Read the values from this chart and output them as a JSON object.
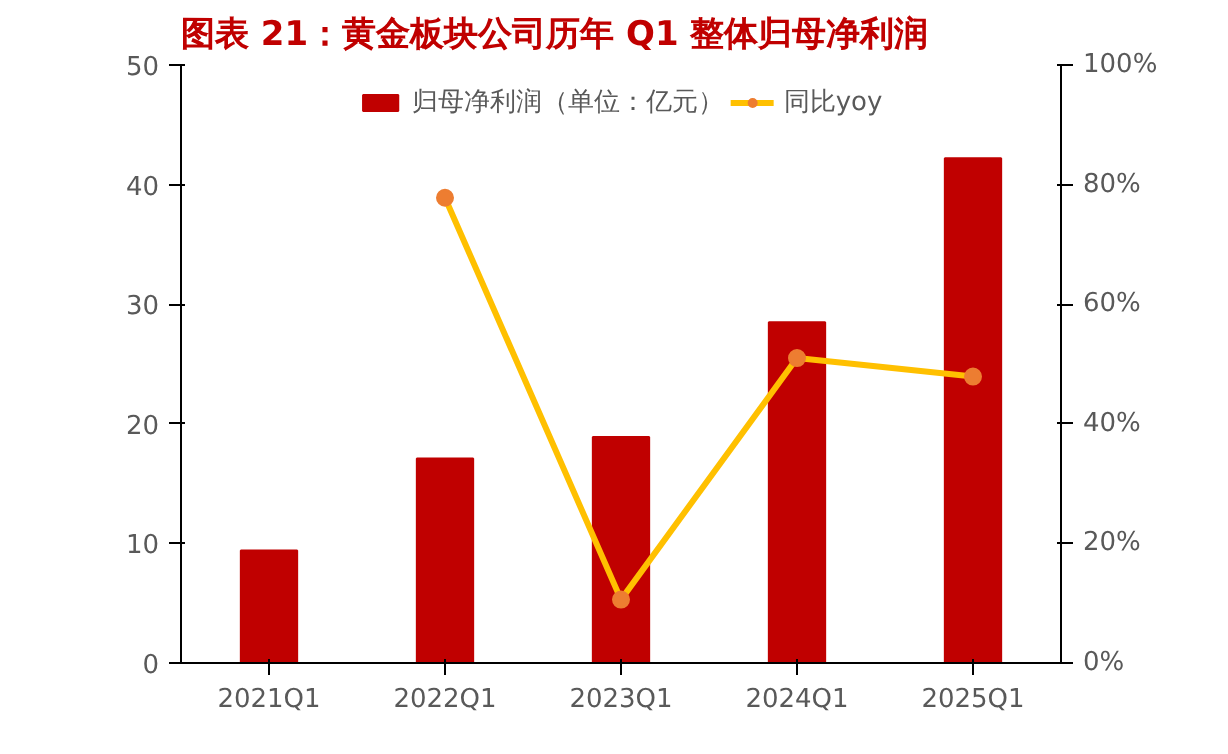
{
  "chart_data": {
    "type": "bar",
    "title": "图表 21：黄金板块公司历年 Q1 整体归母净利润",
    "categories": [
      "2021Q1",
      "2022Q1",
      "2023Q1",
      "2024Q1",
      "2025Q1"
    ],
    "series": [
      {
        "name": "归母净利润（单位：亿元）",
        "color": "#c00000",
        "values": [
          9.4,
          17.1,
          18.9,
          28.5,
          42.2
        ]
      },
      {
        "name": "同比yoy",
        "type": "line",
        "axis": "y2",
        "color": "#ffc000",
        "values": [
          null,
          77.8,
          10.6,
          51.0,
          47.9
        ]
      }
    ],
    "ylim": [
      0,
      50
    ],
    "yticks": [
      0,
      10,
      20,
      30,
      40,
      50
    ],
    "y2lim": [
      0,
      100
    ],
    "y2ticks": [
      {
        "value": 0,
        "label": "0%"
      },
      {
        "value": 20,
        "label": "20%"
      },
      {
        "value": 40,
        "label": "40%"
      },
      {
        "value": 60,
        "label": "60%"
      },
      {
        "value": 80,
        "label": "80%"
      },
      {
        "value": 100,
        "label": "100%"
      }
    ],
    "legend": "top",
    "grid": false,
    "marker": "circle"
  }
}
